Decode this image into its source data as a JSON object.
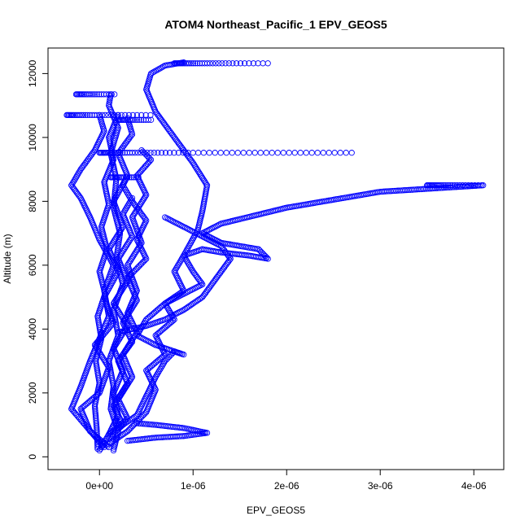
{
  "chart_data": {
    "type": "scatter",
    "title": "ATOM4 Northeast_Pacific_1 EPV_GEOS5",
    "xlabel": "EPV_GEOS5",
    "ylabel": "Altitude (m)",
    "xlim": [
      -5.5e-07,
      4.32e-06
    ],
    "ylim": [
      -400,
      12800
    ],
    "x_ticks": [
      {
        "value": 0,
        "label": "0e+00"
      },
      {
        "value": 1e-06,
        "label": "1e-06"
      },
      {
        "value": 2e-06,
        "label": "2e-06"
      },
      {
        "value": 3e-06,
        "label": "3e-06"
      },
      {
        "value": 4e-06,
        "label": "4e-06"
      }
    ],
    "y_ticks": [
      {
        "value": 0,
        "label": "0"
      },
      {
        "value": 2000,
        "label": "2000"
      },
      {
        "value": 4000,
        "label": "4000"
      },
      {
        "value": 6000,
        "label": "6000"
      },
      {
        "value": 8000,
        "label": "8000"
      },
      {
        "value": 10000,
        "label": "10000"
      },
      {
        "value": 12000,
        "label": "12000"
      }
    ],
    "marker": "open-circle",
    "color": "#0000ff",
    "grid": false,
    "profiles": [
      [
        [
          1.5e-07,
          200
        ],
        [
          2e-07,
          800
        ],
        [
          1.2e-07,
          1500
        ],
        [
          1.5e-07,
          2200
        ],
        [
          1e-07,
          3000
        ],
        [
          2e-07,
          3800
        ],
        [
          1.5e-07,
          4600
        ],
        [
          2.5e-07,
          5400
        ],
        [
          1.8e-07,
          6200
        ],
        [
          2.2e-07,
          7000
        ],
        [
          1.5e-07,
          7800
        ],
        [
          1.8e-07,
          8700
        ],
        [
          1.2e-07,
          9500
        ],
        [
          2e-07,
          10300
        ],
        [
          1e-07,
          11000
        ],
        [
          1.2e-07,
          11350
        ]
      ],
      [
        [
          1e-07,
          300
        ],
        [
          -1e-07,
          800
        ],
        [
          -2e-07,
          1500
        ],
        [
          0,
          2000
        ],
        [
          1e-07,
          2800
        ],
        [
          -5e-08,
          3500
        ],
        [
          1.5e-07,
          4200
        ],
        [
          5e-08,
          5000
        ],
        [
          2e-07,
          5800
        ],
        [
          1e-07,
          6500
        ],
        [
          2.5e-07,
          7200
        ],
        [
          1.5e-07,
          8000
        ],
        [
          3e-07,
          8800
        ],
        [
          2e-07,
          9500
        ],
        [
          3.5e-07,
          10100
        ],
        [
          3e-07,
          10600
        ]
      ],
      [
        [
          0,
          200
        ],
        [
          1e-07,
          700
        ],
        [
          3e-07,
          1200
        ],
        [
          2e-07,
          1800
        ],
        [
          3.5e-07,
          2500
        ],
        [
          2.5e-07,
          3200
        ],
        [
          4e-07,
          3900
        ],
        [
          3e-07,
          4500
        ],
        [
          4e-07,
          5200
        ],
        [
          3e-07,
          6000
        ],
        [
          4.5e-07,
          6700
        ],
        [
          3.5e-07,
          7500
        ],
        [
          5e-07,
          8200
        ],
        [
          4e-07,
          8800
        ],
        [
          5.5e-07,
          9300
        ],
        [
          4.5e-07,
          9600
        ]
      ],
      [
        [
          1e-07,
          400
        ],
        [
          3e-07,
          800
        ],
        [
          5e-07,
          1400
        ],
        [
          6e-07,
          2100
        ],
        [
          5e-07,
          2700
        ],
        [
          7e-07,
          3200
        ],
        [
          6e-07,
          3800
        ],
        [
          8e-07,
          4300
        ],
        [
          7e-07,
          4800
        ],
        [
          9e-07,
          5200
        ],
        [
          8e-07,
          5800
        ],
        [
          9e-07,
          6300
        ],
        [
          1.05e-06,
          7100
        ],
        [
          1.1e-06,
          7700
        ],
        [
          1.15e-06,
          8500
        ],
        [
          1e-06,
          9200
        ],
        [
          8e-07,
          10000
        ],
        [
          6e-07,
          10800
        ],
        [
          5e-07,
          11500
        ],
        [
          5.5e-07,
          12000
        ],
        [
          7e-07,
          12250
        ],
        [
          9e-07,
          12350
        ]
      ],
      [
        [
          -2e-08,
          250
        ],
        [
          -3e-08,
          900
        ],
        [
          -5e-08,
          1600
        ],
        [
          0,
          2300
        ],
        [
          -4e-08,
          3000
        ],
        [
          2e-08,
          3700
        ],
        [
          -2e-08,
          4400
        ],
        [
          6e-08,
          5100
        ],
        [
          0,
          5800
        ],
        [
          8e-08,
          6500
        ],
        [
          2e-08,
          7200
        ],
        [
          1e-07,
          7900
        ],
        [
          5e-08,
          8600
        ],
        [
          1.5e-07,
          9300
        ],
        [
          1e-07,
          10000
        ],
        [
          2e-07,
          10700
        ]
      ],
      [
        [
          5e-08,
          300
        ],
        [
          -3e-07,
          1500
        ],
        [
          -2e-07,
          2200
        ],
        [
          -1e-07,
          3000
        ],
        [
          0,
          3700
        ],
        [
          1e-07,
          4400
        ],
        [
          5e-08,
          5200
        ],
        [
          1.5e-07,
          6000
        ],
        [
          0,
          6800
        ],
        [
          -1e-07,
          7500
        ],
        [
          -2e-07,
          8100
        ],
        [
          -3e-07,
          8500
        ],
        [
          -2e-07,
          9000
        ],
        [
          -5e-08,
          9600
        ],
        [
          5e-08,
          10200
        ],
        [
          0,
          10700
        ]
      ],
      [
        [
          1e-07,
          600
        ],
        [
          2.5e-07,
          1000
        ],
        [
          1.5e-07,
          1600
        ],
        [
          3e-07,
          2300
        ],
        [
          2e-07,
          3000
        ],
        [
          3.5e-07,
          3600
        ],
        [
          2.5e-07,
          4200
        ],
        [
          4e-07,
          4900
        ],
        [
          3e-07,
          5600
        ],
        [
          5e-07,
          6200
        ],
        [
          4e-07,
          6800
        ],
        [
          5e-07,
          7400
        ],
        [
          3.5e-07,
          8000
        ],
        [
          2.5e-07,
          8500
        ],
        [
          3e-07,
          8800
        ]
      ],
      [
        [
          1e-07,
          700
        ],
        [
          2e-07,
          1300
        ],
        [
          1.5e-07,
          2000
        ],
        [
          2.5e-07,
          2700
        ],
        [
          1.5e-07,
          3400
        ],
        [
          3e-07,
          4100
        ],
        [
          1.5e-07,
          4800
        ],
        [
          3e-07,
          5500
        ],
        [
          2e-07,
          6200
        ],
        [
          3.5e-07,
          6900
        ],
        [
          2.5e-07,
          7600
        ],
        [
          3.5e-07,
          8100
        ]
      ],
      [
        [
          2e-07,
          900
        ],
        [
          4e-07,
          1300
        ],
        [
          5e-07,
          1900
        ],
        [
          6e-07,
          2500
        ],
        [
          7e-07,
          3000
        ],
        [
          8e-07,
          3300
        ],
        [
          9e-07,
          3200
        ],
        [
          6e-07,
          3500
        ],
        [
          4e-07,
          3800
        ],
        [
          5e-07,
          4300
        ],
        [
          7e-07,
          4800
        ],
        [
          9e-07,
          5100
        ],
        [
          1.1e-06,
          5400
        ],
        [
          1e-06,
          5800
        ],
        [
          9e-07,
          6300
        ],
        [
          1.1e-06,
          6500
        ],
        [
          1.3e-06,
          6400
        ],
        [
          1.6e-06,
          6300
        ],
        [
          1.8e-06,
          6200
        ],
        [
          1.7e-06,
          6500
        ],
        [
          1.3e-06,
          6700
        ],
        [
          1.1e-06,
          7000
        ],
        [
          1.3e-06,
          7300
        ],
        [
          2e-06,
          7800
        ],
        [
          3e-06,
          8300
        ],
        [
          4.1e-06,
          8500
        ]
      ],
      [
        [
          3e-07,
          500
        ],
        [
          6e-07,
          600
        ],
        [
          9e-07,
          650
        ],
        [
          1.15e-06,
          750
        ],
        [
          9e-07,
          900
        ],
        [
          6e-07,
          1000
        ],
        [
          4e-07,
          1050
        ]
      ],
      [
        [
          2e-07,
          3900
        ],
        [
          5e-07,
          4100
        ],
        [
          7e-07,
          4300
        ],
        [
          9e-07,
          4600
        ],
        [
          1.1e-06,
          5000
        ],
        [
          1.2e-06,
          5400
        ],
        [
          1.3e-06,
          5800
        ],
        [
          1.4e-06,
          6200
        ],
        [
          1.3e-06,
          6600
        ],
        [
          1.1e-06,
          6900
        ],
        [
          9e-07,
          7200
        ],
        [
          7e-07,
          7500
        ]
      ]
    ],
    "bands": [
      {
        "y": 10700,
        "x_from": -3.5e-07,
        "x_to": 5.5e-07
      },
      {
        "y": 11350,
        "x_from": -2.5e-07,
        "x_to": 1.8e-07
      },
      {
        "y": 9520,
        "x_from": 0,
        "x_to": 2.75e-06
      },
      {
        "y": 12320,
        "x_from": 8e-07,
        "x_to": 1.85e-06
      },
      {
        "y": 8500,
        "x_from": 3.5e-06,
        "x_to": 4.1e-06
      },
      {
        "y": 8750,
        "x_from": 1.2e-07,
        "x_to": 4.3e-07
      },
      {
        "y": 10550,
        "x_from": 2e-07,
        "x_to": 5.6e-07
      }
    ]
  }
}
